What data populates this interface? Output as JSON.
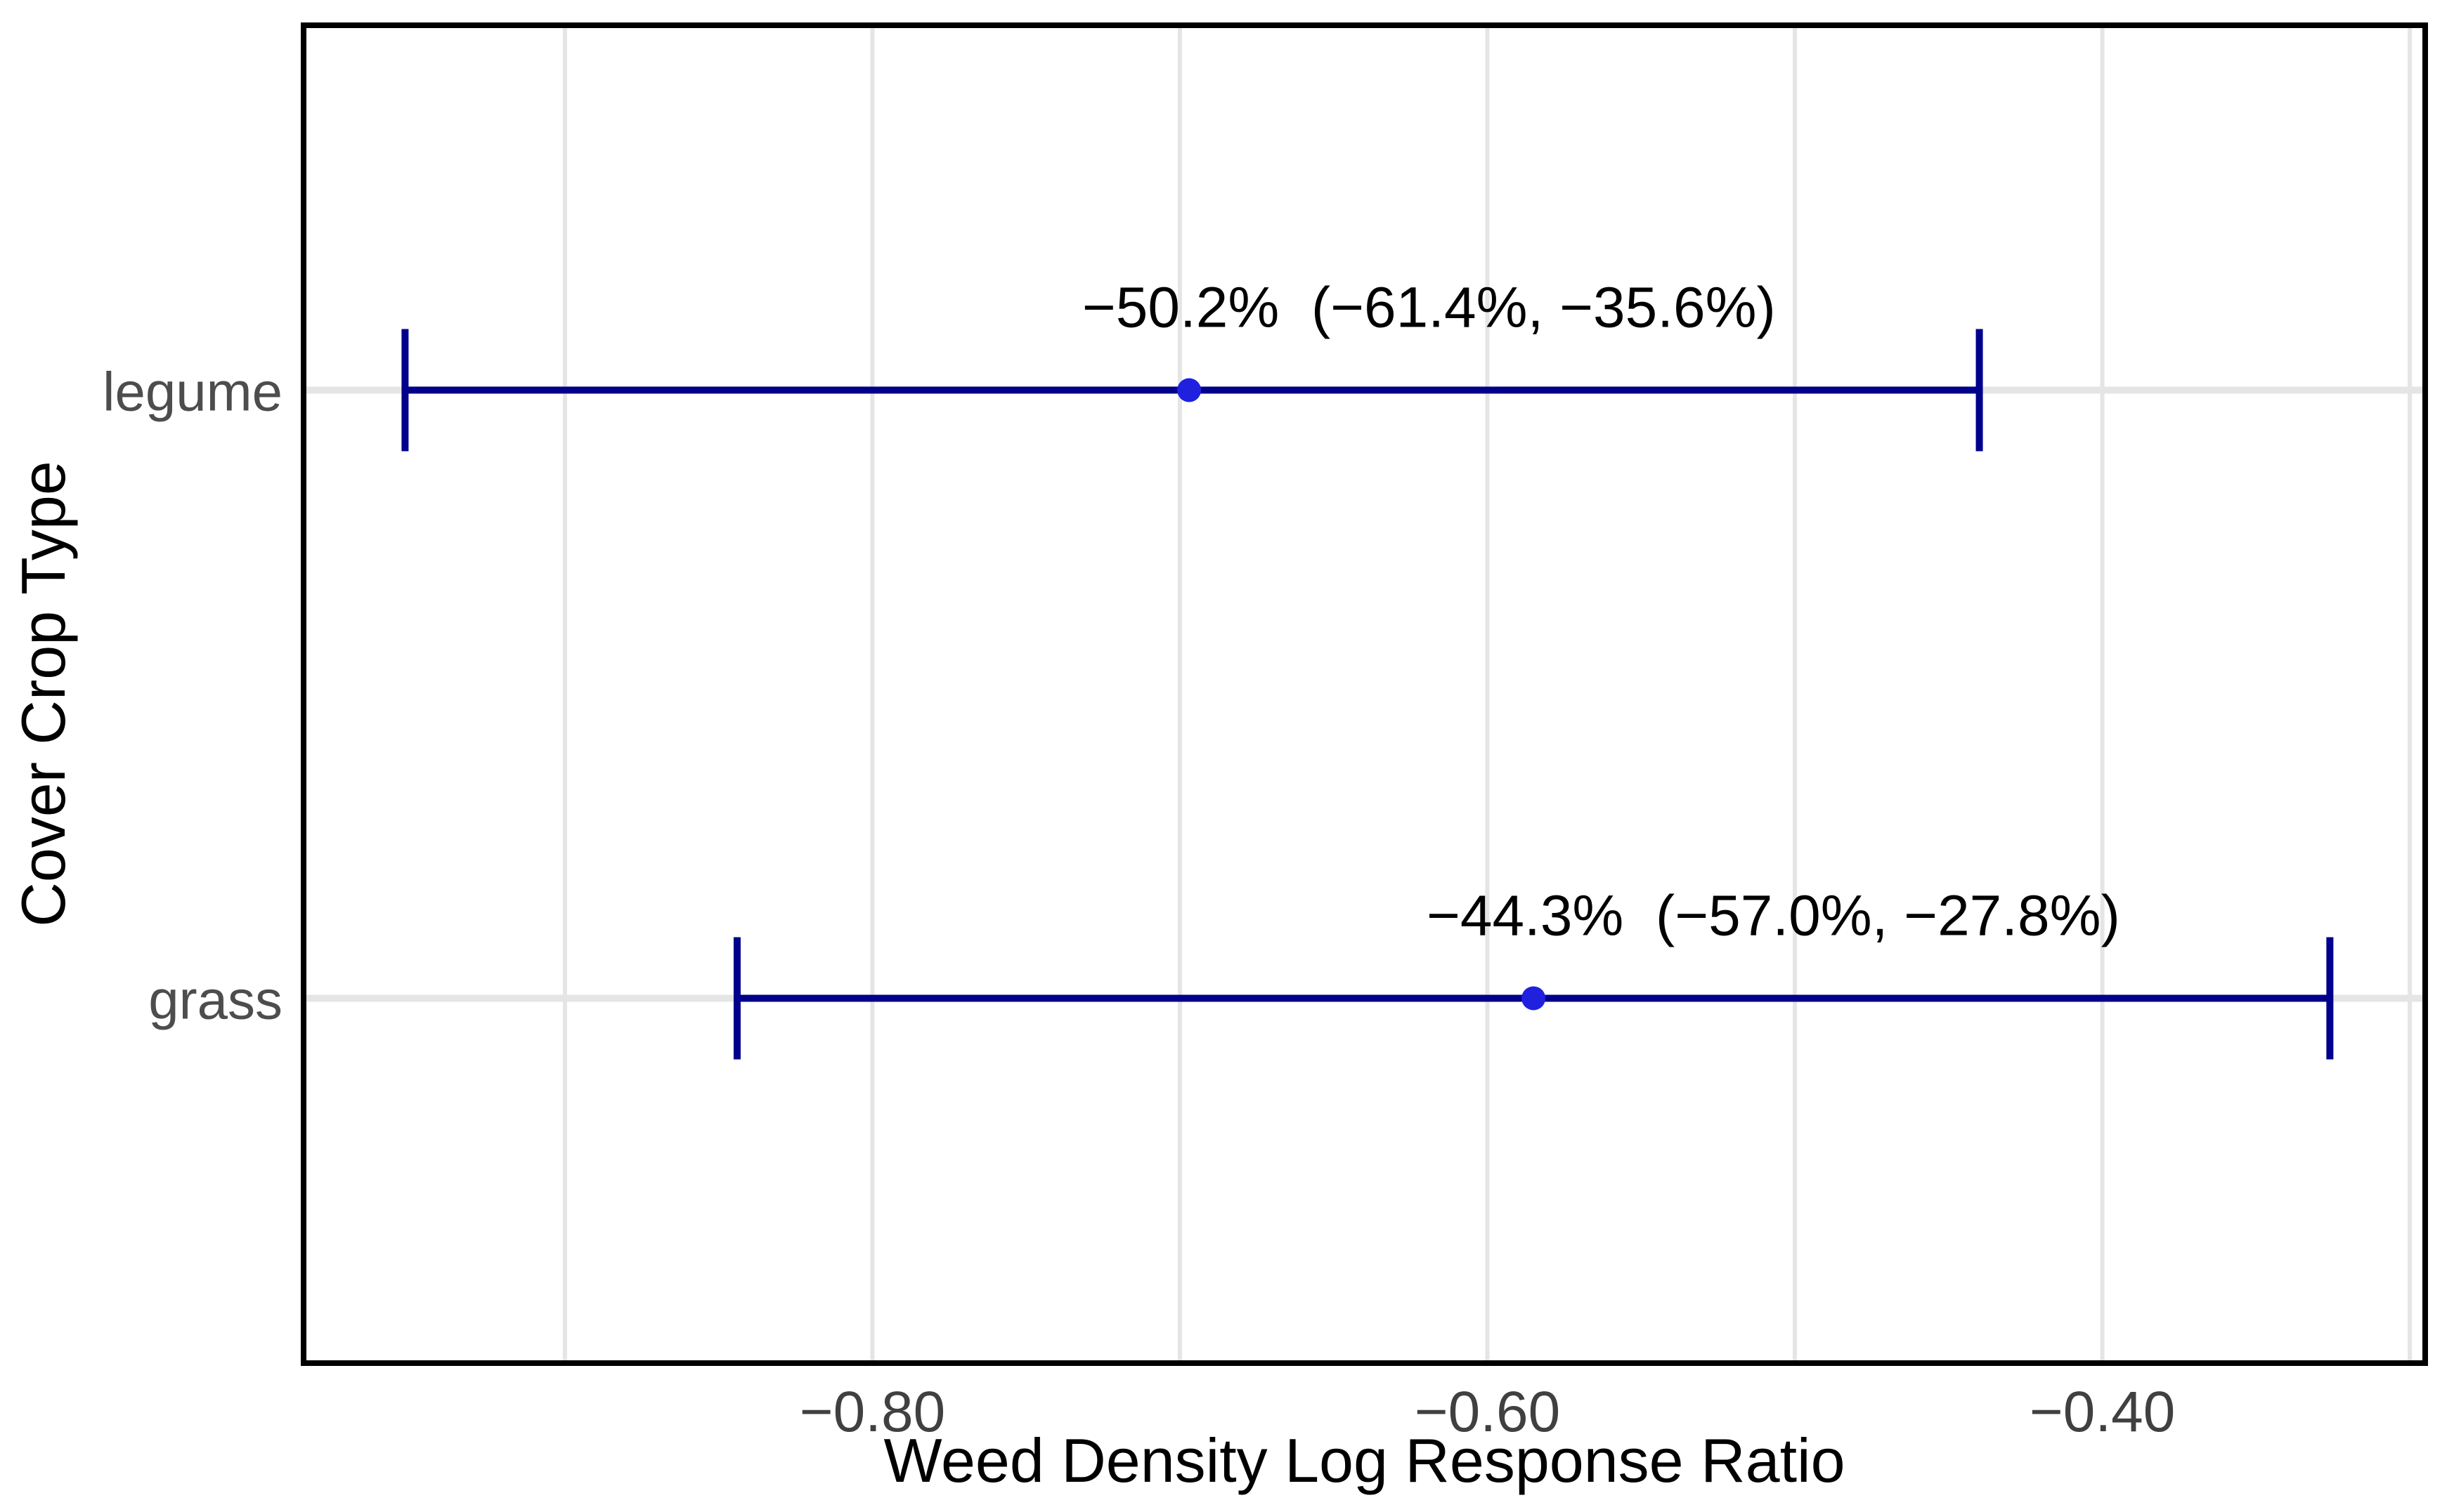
{
  "chart_data": {
    "type": "scatter",
    "subtype": "forest-plot-with-error-bars",
    "title": "",
    "xlabel": "Weed Density Log Response Ratio",
    "ylabel": "Cover Crop Type",
    "categories": [
      "legume",
      "grass"
    ],
    "series": [
      {
        "category": "legume",
        "estimate": -0.697,
        "ci_low": -0.952,
        "ci_high": -0.44,
        "label": "−50.2%  (−61.4%, −35.6%)",
        "percent_change": "−50.2%",
        "percent_ci": "(−61.4%, −35.6%)"
      },
      {
        "category": "grass",
        "estimate": -0.585,
        "ci_low": -0.844,
        "ci_high": -0.326,
        "label": "−44.3%  (−57.0%, −27.8%)",
        "percent_change": "−44.3%",
        "percent_ci": "(−57.0%, −27.8%)"
      }
    ],
    "x_ticks": [
      {
        "value": -0.8,
        "label": "−0.80"
      },
      {
        "value": -0.6,
        "label": "−0.60"
      },
      {
        "value": -0.4,
        "label": "−0.40"
      }
    ],
    "x_gridlines": [
      -0.9,
      -0.8,
      -0.7,
      -0.6,
      -0.5,
      -0.4,
      -0.3
    ],
    "xlim": [
      -0.985,
      -0.295
    ],
    "grid": true,
    "legend_position": "none",
    "colors": {
      "error_bar": "#00008B",
      "point": "#2020DF",
      "grid_line": "#E5E5E5",
      "panel_border": "#000000",
      "tick_label": "#404040",
      "category_label": "#4D4D4D",
      "annotation": "#000000",
      "axis_title": "#000000",
      "background": "#FFFFFF"
    }
  }
}
